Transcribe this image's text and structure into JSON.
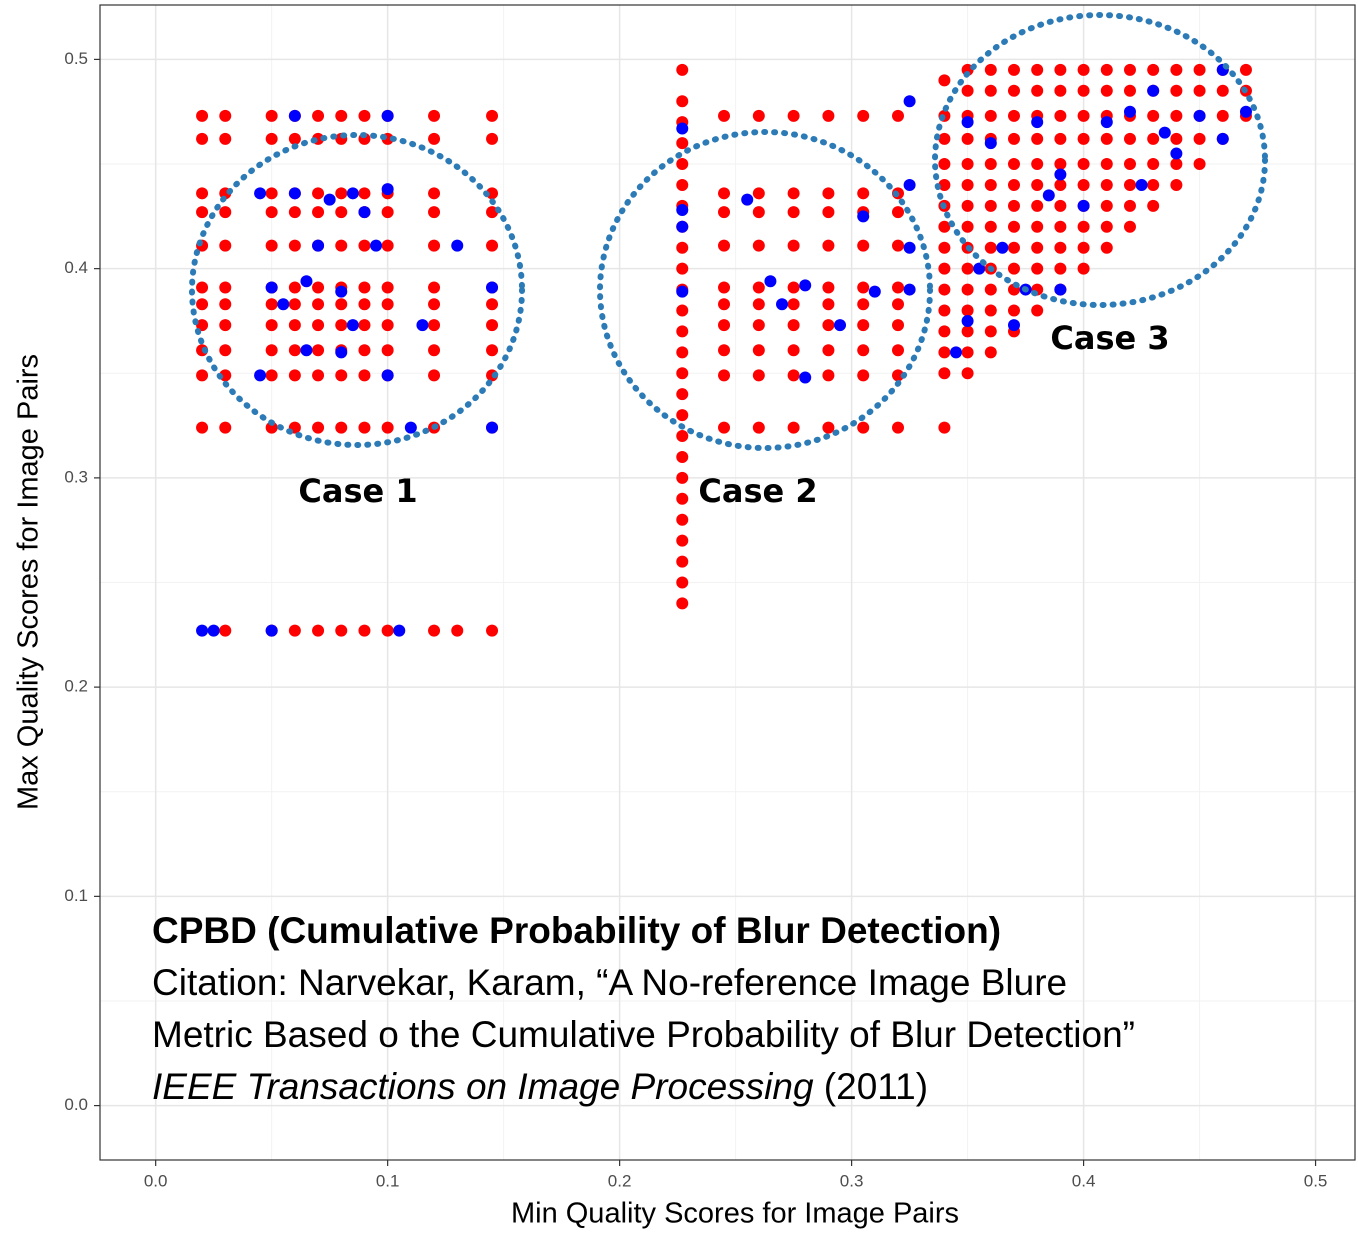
{
  "chart_data": {
    "type": "scatter",
    "x_label": "Min Quality Scores for Image Pairs",
    "y_label": "Max Quality Scores for Image Pairs",
    "xlim": [
      -0.024,
      0.517
    ],
    "ylim": [
      -0.026,
      0.526
    ],
    "xticks": [
      {
        "value": 0,
        "label": "0.0"
      },
      {
        "value": 0.1,
        "label": "0.1"
      },
      {
        "value": 0.2,
        "label": "0.2"
      },
      {
        "value": 0.3,
        "label": "0.3"
      },
      {
        "value": 0.4,
        "label": "0.4"
      },
      {
        "value": 0.5,
        "label": "0.5"
      }
    ],
    "yticks": [
      {
        "value": 0,
        "label": "0.0"
      },
      {
        "value": 0.1,
        "label": "0.1"
      },
      {
        "value": 0.2,
        "label": "0.2"
      },
      {
        "value": 0.3,
        "label": "0.3"
      },
      {
        "value": 0.4,
        "label": "0.4"
      },
      {
        "value": 0.5,
        "label": "0.5"
      }
    ],
    "xminor_ticks": [
      0.05,
      0.15,
      0.25,
      0.35,
      0.45
    ],
    "yminor_ticks": [
      0.05,
      0.15,
      0.25,
      0.35,
      0.45
    ],
    "grid": true,
    "annotations": {
      "case1": "Case 1",
      "case2": "Case 2",
      "case3": "Case 3",
      "note_title": "CPBD (Cumulative Probability of Blur Detection)",
      "note_lines": [
        "Citation: Narvekar, Karam, “A No-reference Image Blure",
        "Metric Based o the Cumulative Probability of Blur Detection”"
      ],
      "note_journal": "IEEE Transactions on Image Processing",
      "note_year": " (2011)"
    },
    "series": [
      {
        "color": "#ff0000",
        "x": [
          0.02,
          0.03,
          0.05,
          0.06,
          0.07,
          0.08,
          0.09,
          0.1,
          0.12,
          0.145
        ],
        "values": [
          0.473,
          0.473,
          0.473,
          0.473,
          0.473,
          0.473,
          0.473,
          0.473,
          0.473,
          0.473
        ]
      },
      {
        "color": "#ff0000",
        "x": [
          0.02,
          0.03,
          0.05,
          0.06,
          0.07,
          0.08,
          0.09,
          0.1,
          0.12,
          0.145
        ],
        "values": [
          0.462,
          0.462,
          0.462,
          0.462,
          0.462,
          0.462,
          0.462,
          0.462,
          0.462,
          0.462
        ]
      },
      {
        "color": "#ff0000",
        "x": [
          0.02,
          0.03,
          0.05,
          0.06,
          0.07,
          0.08,
          0.09,
          0.1,
          0.12,
          0.145
        ],
        "values": [
          0.436,
          0.436,
          0.436,
          0.436,
          0.436,
          0.436,
          0.436,
          0.436,
          0.436,
          0.436
        ]
      },
      {
        "color": "#ff0000",
        "x": [
          0.02,
          0.03,
          0.05,
          0.06,
          0.07,
          0.08,
          0.09,
          0.1,
          0.12,
          0.145
        ],
        "values": [
          0.427,
          0.427,
          0.427,
          0.427,
          0.427,
          0.427,
          0.427,
          0.427,
          0.427,
          0.427
        ]
      },
      {
        "color": "#ff0000",
        "x": [
          0.02,
          0.03,
          0.05,
          0.06,
          0.07,
          0.08,
          0.09,
          0.1,
          0.12,
          0.145
        ],
        "values": [
          0.411,
          0.411,
          0.411,
          0.411,
          0.411,
          0.411,
          0.411,
          0.411,
          0.411,
          0.411
        ]
      },
      {
        "color": "#ff0000",
        "x": [
          0.02,
          0.03,
          0.05,
          0.06,
          0.07,
          0.08,
          0.09,
          0.1,
          0.12,
          0.145
        ],
        "values": [
          0.391,
          0.391,
          0.391,
          0.391,
          0.391,
          0.391,
          0.391,
          0.391,
          0.391,
          0.391
        ]
      },
      {
        "color": "#ff0000",
        "x": [
          0.02,
          0.03,
          0.05,
          0.06,
          0.07,
          0.08,
          0.09,
          0.1,
          0.12,
          0.145
        ],
        "values": [
          0.383,
          0.383,
          0.383,
          0.383,
          0.383,
          0.383,
          0.383,
          0.383,
          0.383,
          0.383
        ]
      },
      {
        "color": "#ff0000",
        "x": [
          0.02,
          0.03,
          0.05,
          0.06,
          0.07,
          0.08,
          0.09,
          0.1,
          0.12,
          0.145
        ],
        "values": [
          0.373,
          0.373,
          0.373,
          0.373,
          0.373,
          0.373,
          0.373,
          0.373,
          0.373,
          0.373
        ]
      },
      {
        "color": "#ff0000",
        "x": [
          0.02,
          0.03,
          0.05,
          0.06,
          0.07,
          0.08,
          0.09,
          0.1,
          0.12,
          0.145
        ],
        "values": [
          0.361,
          0.361,
          0.361,
          0.361,
          0.361,
          0.361,
          0.361,
          0.361,
          0.361,
          0.361
        ]
      },
      {
        "color": "#ff0000",
        "x": [
          0.02,
          0.03,
          0.05,
          0.06,
          0.07,
          0.08,
          0.09,
          0.1,
          0.12,
          0.145
        ],
        "values": [
          0.349,
          0.349,
          0.349,
          0.349,
          0.349,
          0.349,
          0.349,
          0.349,
          0.349,
          0.349
        ]
      },
      {
        "color": "#ff0000",
        "x": [
          0.02,
          0.03,
          0.05,
          0.06,
          0.07,
          0.08,
          0.09,
          0.1,
          0.12,
          0.145
        ],
        "values": [
          0.324,
          0.324,
          0.324,
          0.324,
          0.324,
          0.324,
          0.324,
          0.324,
          0.324,
          0.324
        ]
      },
      {
        "color": "#ff0000",
        "x": [
          0.03,
          0.05,
          0.06,
          0.07,
          0.08,
          0.09,
          0.1,
          0.12,
          0.13,
          0.145
        ],
        "values": [
          0.227,
          0.227,
          0.227,
          0.227,
          0.227,
          0.227,
          0.227,
          0.227,
          0.227,
          0.227
        ]
      },
      {
        "color": "#ff0000",
        "x": [
          0.227,
          0.227,
          0.227,
          0.227,
          0.227,
          0.227,
          0.227,
          0.227,
          0.227,
          0.227,
          0.227,
          0.227,
          0.227,
          0.227,
          0.227,
          0.227,
          0.227,
          0.227,
          0.227,
          0.227,
          0.227,
          0.227,
          0.227,
          0.227,
          0.227,
          0.227
        ],
        "values": [
          0.24,
          0.25,
          0.26,
          0.27,
          0.28,
          0.29,
          0.3,
          0.31,
          0.32,
          0.33,
          0.34,
          0.35,
          0.36,
          0.37,
          0.38,
          0.39,
          0.4,
          0.41,
          0.42,
          0.43,
          0.44,
          0.45,
          0.46,
          0.47,
          0.48,
          0.495
        ]
      },
      {
        "color": "#ff0000",
        "x": [
          0.245,
          0.245,
          0.245,
          0.245,
          0.245,
          0.245,
          0.245,
          0.245,
          0.245,
          0.245
        ],
        "values": [
          0.473,
          0.436,
          0.427,
          0.411,
          0.391,
          0.383,
          0.373,
          0.361,
          0.349,
          0.324
        ]
      },
      {
        "color": "#ff0000",
        "x": [
          0.26,
          0.26,
          0.26,
          0.26,
          0.26,
          0.26,
          0.26,
          0.26,
          0.26,
          0.26
        ],
        "values": [
          0.473,
          0.436,
          0.427,
          0.411,
          0.391,
          0.383,
          0.373,
          0.361,
          0.349,
          0.324
        ]
      },
      {
        "color": "#ff0000",
        "x": [
          0.275,
          0.275,
          0.275,
          0.275,
          0.275,
          0.275,
          0.275,
          0.275,
          0.275,
          0.275
        ],
        "values": [
          0.473,
          0.436,
          0.427,
          0.411,
          0.391,
          0.383,
          0.373,
          0.361,
          0.349,
          0.324
        ]
      },
      {
        "color": "#ff0000",
        "x": [
          0.29,
          0.29,
          0.29,
          0.29,
          0.29,
          0.29,
          0.29,
          0.29,
          0.29,
          0.29
        ],
        "values": [
          0.473,
          0.436,
          0.427,
          0.411,
          0.391,
          0.383,
          0.373,
          0.361,
          0.349,
          0.324
        ]
      },
      {
        "color": "#ff0000",
        "x": [
          0.305,
          0.305,
          0.305,
          0.305,
          0.305,
          0.305,
          0.305,
          0.305,
          0.305,
          0.305
        ],
        "values": [
          0.473,
          0.436,
          0.427,
          0.411,
          0.391,
          0.383,
          0.373,
          0.361,
          0.349,
          0.324
        ]
      },
      {
        "color": "#ff0000",
        "x": [
          0.32,
          0.32,
          0.32,
          0.32,
          0.32,
          0.32,
          0.32,
          0.32,
          0.32,
          0.32
        ],
        "values": [
          0.473,
          0.436,
          0.427,
          0.411,
          0.391,
          0.383,
          0.373,
          0.361,
          0.349,
          0.324
        ]
      },
      {
        "color": "#ff0000",
        "x": [
          0.34,
          0.34,
          0.34,
          0.34,
          0.34,
          0.34,
          0.34,
          0.34,
          0.34,
          0.34,
          0.34,
          0.34,
          0.34,
          0.34,
          0.34
        ],
        "values": [
          0.324,
          0.35,
          0.36,
          0.37,
          0.38,
          0.39,
          0.4,
          0.41,
          0.42,
          0.43,
          0.44,
          0.45,
          0.462,
          0.473,
          0.49
        ]
      },
      {
        "color": "#ff0000",
        "x": [
          0.35,
          0.35,
          0.35,
          0.35,
          0.35,
          0.35,
          0.35,
          0.35,
          0.35,
          0.35,
          0.35,
          0.35,
          0.35,
          0.35,
          0.35
        ],
        "values": [
          0.495,
          0.485,
          0.473,
          0.462,
          0.45,
          0.44,
          0.43,
          0.42,
          0.41,
          0.4,
          0.39,
          0.38,
          0.37,
          0.36,
          0.35
        ]
      },
      {
        "color": "#ff0000",
        "x": [
          0.36,
          0.36,
          0.36,
          0.36,
          0.36,
          0.36,
          0.36,
          0.36,
          0.36,
          0.36,
          0.36,
          0.36,
          0.36,
          0.36
        ],
        "values": [
          0.495,
          0.485,
          0.473,
          0.462,
          0.45,
          0.44,
          0.43,
          0.42,
          0.41,
          0.4,
          0.39,
          0.38,
          0.37,
          0.36
        ]
      },
      {
        "color": "#ff0000",
        "x": [
          0.37,
          0.37,
          0.37,
          0.37,
          0.37,
          0.37,
          0.37,
          0.37,
          0.37,
          0.37,
          0.37,
          0.37,
          0.37
        ],
        "values": [
          0.495,
          0.485,
          0.473,
          0.462,
          0.45,
          0.44,
          0.43,
          0.42,
          0.41,
          0.4,
          0.39,
          0.38,
          0.37
        ]
      },
      {
        "color": "#ff0000",
        "x": [
          0.38,
          0.38,
          0.38,
          0.38,
          0.38,
          0.38,
          0.38,
          0.38,
          0.38,
          0.38,
          0.38,
          0.38
        ],
        "values": [
          0.495,
          0.485,
          0.473,
          0.462,
          0.45,
          0.44,
          0.43,
          0.42,
          0.41,
          0.4,
          0.39,
          0.38
        ]
      },
      {
        "color": "#ff0000",
        "x": [
          0.39,
          0.39,
          0.39,
          0.39,
          0.39,
          0.39,
          0.39,
          0.39,
          0.39,
          0.39,
          0.39
        ],
        "values": [
          0.495,
          0.485,
          0.473,
          0.462,
          0.45,
          0.44,
          0.43,
          0.42,
          0.41,
          0.4,
          0.39
        ]
      },
      {
        "color": "#ff0000",
        "x": [
          0.4,
          0.4,
          0.4,
          0.4,
          0.4,
          0.4,
          0.4,
          0.4,
          0.4,
          0.4
        ],
        "values": [
          0.495,
          0.485,
          0.473,
          0.462,
          0.45,
          0.44,
          0.43,
          0.42,
          0.41,
          0.4
        ]
      },
      {
        "color": "#ff0000",
        "x": [
          0.41,
          0.41,
          0.41,
          0.41,
          0.41,
          0.41,
          0.41,
          0.41,
          0.41
        ],
        "values": [
          0.495,
          0.485,
          0.473,
          0.462,
          0.45,
          0.44,
          0.43,
          0.42,
          0.41
        ]
      },
      {
        "color": "#ff0000",
        "x": [
          0.42,
          0.42,
          0.42,
          0.42,
          0.42,
          0.42,
          0.42,
          0.42
        ],
        "values": [
          0.495,
          0.485,
          0.473,
          0.462,
          0.45,
          0.44,
          0.43,
          0.42
        ]
      },
      {
        "color": "#ff0000",
        "x": [
          0.43,
          0.43,
          0.43,
          0.43,
          0.43,
          0.43,
          0.43
        ],
        "values": [
          0.495,
          0.485,
          0.473,
          0.462,
          0.45,
          0.44,
          0.43
        ]
      },
      {
        "color": "#ff0000",
        "x": [
          0.44,
          0.44,
          0.44,
          0.44,
          0.44,
          0.44
        ],
        "values": [
          0.495,
          0.485,
          0.473,
          0.462,
          0.45,
          0.44
        ]
      },
      {
        "color": "#ff0000",
        "x": [
          0.45,
          0.45,
          0.45,
          0.45,
          0.45
        ],
        "values": [
          0.495,
          0.485,
          0.473,
          0.462,
          0.45
        ]
      },
      {
        "color": "#ff0000",
        "x": [
          0.46,
          0.46,
          0.46,
          0.46
        ],
        "values": [
          0.495,
          0.485,
          0.473,
          0.462
        ]
      },
      {
        "color": "#ff0000",
        "x": [
          0.47,
          0.47,
          0.47
        ],
        "values": [
          0.495,
          0.485,
          0.473
        ]
      },
      {
        "color": "#0000ff",
        "x": [
          0.045,
          0.06,
          0.075,
          0.085,
          0.1,
          0.09,
          0.07,
          0.095,
          0.13,
          0.05,
          0.065,
          0.08,
          0.145,
          0.055,
          0.085,
          0.115,
          0.065,
          0.08,
          0.045,
          0.1,
          0.11,
          0.145,
          0.02,
          0.025,
          0.05,
          0.105,
          0.06,
          0.1,
          0.227,
          0.227,
          0.227,
          0.227,
          0.255,
          0.265,
          0.27,
          0.28,
          0.295,
          0.28,
          0.31,
          0.305,
          0.325,
          0.325,
          0.325,
          0.325,
          0.35,
          0.36,
          0.38,
          0.355,
          0.365,
          0.375,
          0.35,
          0.345,
          0.385,
          0.39,
          0.4,
          0.41,
          0.42,
          0.43,
          0.435,
          0.44,
          0.425,
          0.46,
          0.46,
          0.45,
          0.47,
          0.39,
          0.37
        ],
        "values": [
          0.436,
          0.436,
          0.433,
          0.436,
          0.438,
          0.427,
          0.411,
          0.411,
          0.411,
          0.391,
          0.394,
          0.389,
          0.391,
          0.383,
          0.373,
          0.373,
          0.361,
          0.36,
          0.349,
          0.349,
          0.324,
          0.324,
          0.227,
          0.227,
          0.227,
          0.227,
          0.473,
          0.473,
          0.467,
          0.428,
          0.42,
          0.389,
          0.433,
          0.394,
          0.383,
          0.392,
          0.373,
          0.348,
          0.389,
          0.425,
          0.41,
          0.39,
          0.48,
          0.44,
          0.47,
          0.46,
          0.47,
          0.4,
          0.41,
          0.39,
          0.375,
          0.36,
          0.435,
          0.445,
          0.43,
          0.47,
          0.475,
          0.485,
          0.465,
          0.455,
          0.44,
          0.495,
          0.462,
          0.473,
          0.475,
          0.39,
          0.373
        ]
      }
    ]
  }
}
